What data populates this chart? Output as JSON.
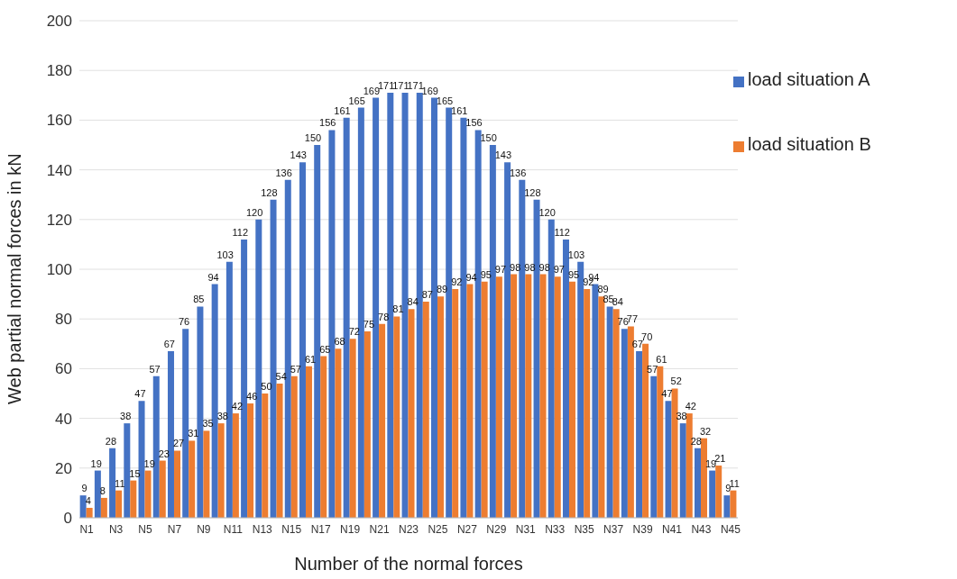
{
  "chart_data": {
    "type": "bar",
    "xlabel": "Number of the normal forces",
    "ylabel": "Web partial normal forces in kN",
    "categories": [
      "N1",
      null,
      "N3",
      null,
      "N5",
      null,
      "N7",
      null,
      "N9",
      null,
      "N11",
      null,
      "N13",
      null,
      "N15",
      null,
      "N17",
      null,
      "N19",
      null,
      "N21",
      null,
      "N23",
      null,
      "N25",
      null,
      "N27",
      null,
      "N29",
      null,
      "N31",
      null,
      "N33",
      null,
      "N35",
      null,
      "N37",
      null,
      "N39",
      null,
      "N41",
      null,
      "N43",
      null,
      "N45"
    ],
    "series": [
      {
        "name": "load situation A",
        "color": "#4472c4",
        "values": [
          9,
          19,
          28,
          38,
          47,
          57,
          67,
          76,
          85,
          94,
          103,
          112,
          120,
          128,
          136,
          143,
          150,
          156,
          161,
          165,
          169,
          171,
          171,
          171,
          169,
          165,
          161,
          156,
          150,
          143,
          136,
          128,
          120,
          112,
          103,
          94,
          85,
          76,
          67,
          57,
          47,
          38,
          28,
          19,
          9
        ]
      },
      {
        "name": "load situation B",
        "color": "#ed7d31",
        "values": [
          4,
          8,
          11,
          15,
          19,
          23,
          27,
          31,
          35,
          38,
          42,
          46,
          50,
          54,
          57,
          61,
          65,
          68,
          72,
          75,
          78,
          81,
          84,
          87,
          89,
          92,
          94,
          95,
          97,
          98,
          98,
          98,
          97,
          95,
          92,
          89,
          84,
          77,
          70,
          61,
          52,
          42,
          32,
          21,
          11
        ]
      }
    ],
    "ylim": [
      0,
      200
    ],
    "yticks": [
      0,
      20,
      40,
      60,
      80,
      100,
      120,
      140,
      160,
      180,
      200
    ],
    "grid": "y",
    "legend": "top right",
    "data_labels": true
  }
}
